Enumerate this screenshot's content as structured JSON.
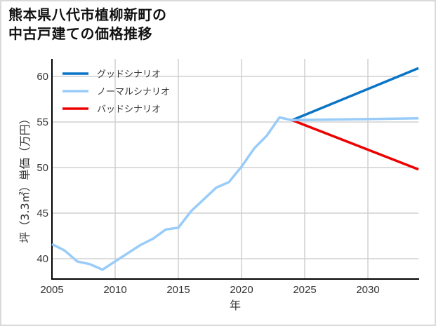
{
  "title": {
    "line1": "熊本県八代市植柳新町の",
    "line2": "中古戸建ての価格推移"
  },
  "colors": {
    "good": "#0a74c6",
    "normal": "#99ccf8",
    "bad": "#ee0000",
    "grid": "#d0d0d0",
    "axis": "#000000"
  },
  "chart_data": {
    "type": "line",
    "title": "熊本県八代市植柳新町の中古戸建ての価格推移",
    "xlabel": "年",
    "ylabel": "坪（3.3㎡）単価（万円）",
    "xlim": [
      2005,
      2034
    ],
    "ylim": [
      37.8,
      62.2
    ],
    "x_ticks": [
      2005,
      2010,
      2015,
      2020,
      2025,
      2030
    ],
    "y_ticks": [
      40,
      45,
      50,
      55,
      60
    ],
    "grid": true,
    "legend_position": "upper left",
    "historical": {
      "x": [
        2005,
        2006,
        2007,
        2008,
        2009,
        2010,
        2011,
        2012,
        2013,
        2014,
        2015,
        2016,
        2017,
        2018,
        2019,
        2020,
        2021,
        2022,
        2023,
        2024
      ],
      "values": [
        41.6,
        40.9,
        39.7,
        39.4,
        38.8,
        39.7,
        40.6,
        41.5,
        42.2,
        43.2,
        43.4,
        45.2,
        46.5,
        47.8,
        48.4,
        50.1,
        52.1,
        53.5,
        55.5,
        55.2
      ]
    },
    "series": [
      {
        "name": "グッドシナリオ",
        "color": "#0a74c6",
        "x": [
          2024,
          2034
        ],
        "values": [
          55.2,
          60.9
        ]
      },
      {
        "name": "ノーマルシナリオ",
        "color": "#99ccf8",
        "x": [
          2024,
          2034
        ],
        "values": [
          55.2,
          55.4
        ]
      },
      {
        "name": "バッドシナリオ",
        "color": "#ee0000",
        "x": [
          2024,
          2034
        ],
        "values": [
          55.2,
          49.8
        ]
      }
    ]
  },
  "legend": [
    {
      "label": "グッドシナリオ",
      "color": "#0a74c6"
    },
    {
      "label": "ノーマルシナリオ",
      "color": "#99ccf8"
    },
    {
      "label": "バッドシナリオ",
      "color": "#ee0000"
    }
  ],
  "axes": {
    "xlabel": "年",
    "ylabel": "坪（3.3㎡）単価（万円）",
    "x_ticks": [
      "2005",
      "2010",
      "2015",
      "2020",
      "2025",
      "2030"
    ],
    "y_ticks": [
      "60",
      "55",
      "50",
      "45",
      "40"
    ]
  }
}
